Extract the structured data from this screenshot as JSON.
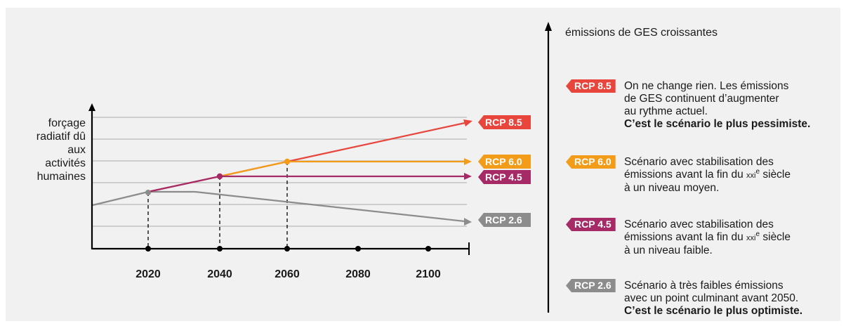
{
  "y_axis_label_lines": [
    "forçage",
    "radiatif dû",
    "aux",
    "activités",
    "humaines"
  ],
  "x_ticks": [
    "2020",
    "2040",
    "2060",
    "2080",
    "2100"
  ],
  "legend_title": "émissions de GES croissantes",
  "colors": {
    "rcp85": "#e8453c",
    "rcp60": "#f39c1a",
    "rcp45": "#a52a66",
    "rcp26": "#8c8c8c",
    "axis": "#000000",
    "grid": "#b9b9b9",
    "panel": "#f1f1f1"
  },
  "scenarios": [
    {
      "id": "rcp85",
      "label": "RCP 8.5",
      "color": "#e8453c",
      "lines": [
        "On ne change rien. Les émissions",
        "de GES continuent d’augmenter",
        "au rythme actuel."
      ],
      "bold_line": "C’est le scénario le plus pessimiste."
    },
    {
      "id": "rcp60",
      "label": "RCP 6.0",
      "color": "#f39c1a",
      "line1": "Scénario avec stabilisation des",
      "line2_pre": "émissions avant la fin du ",
      "century": "xxi",
      "century_sup": "e",
      "line2_post": " siècle",
      "line3": "à un niveau moyen."
    },
    {
      "id": "rcp45",
      "label": "RCP 4.5",
      "color": "#a52a66",
      "line1": "Scénario avec stabilisation des",
      "line2_pre": "émissions avant la fin du ",
      "century": "xxi",
      "century_sup": "e",
      "line2_post": " siècle",
      "line3": "à un niveau faible."
    },
    {
      "id": "rcp26",
      "label": "RCP 2.6",
      "color": "#8c8c8c",
      "lines": [
        "Scénario à très faibles émissions",
        "avec un point culminant avant 2050."
      ],
      "bold_line": "C’est le scénario le plus optimiste."
    }
  ]
}
